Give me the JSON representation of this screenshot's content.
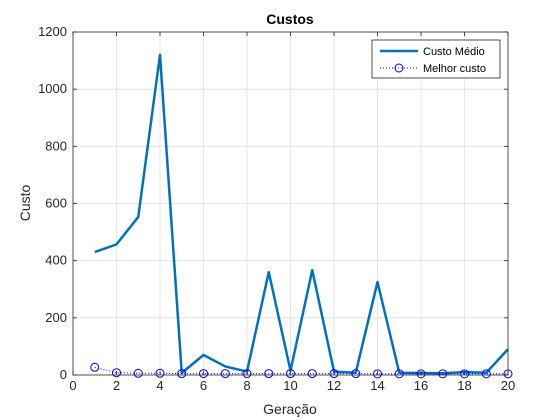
{
  "chart_data": {
    "type": "line",
    "title": "Custos",
    "xlabel": "Geração",
    "ylabel": "Custo",
    "xlim": [
      0,
      20
    ],
    "ylim": [
      0,
      1200
    ],
    "xticks": [
      0,
      2,
      4,
      6,
      8,
      10,
      12,
      14,
      16,
      18,
      20
    ],
    "yticks": [
      0,
      200,
      400,
      600,
      800,
      1000,
      1200
    ],
    "grid": true,
    "legend_position": "top-right",
    "x": [
      1,
      2,
      3,
      4,
      5,
      6,
      7,
      8,
      9,
      10,
      11,
      12,
      13,
      14,
      15,
      16,
      17,
      18,
      19,
      20
    ],
    "series": [
      {
        "name": "Custo Médio",
        "style": "solid line",
        "color": "#0072BD",
        "values": [
          430,
          457,
          553,
          1120,
          7,
          70,
          30,
          12,
          360,
          15,
          367,
          12,
          8,
          325,
          8,
          7,
          6,
          10,
          8,
          90
        ]
      },
      {
        "name": "Melhor custo",
        "style": "dotted line with circle markers",
        "color": "#0000FF",
        "values": [
          27,
          8,
          6,
          6,
          5,
          5,
          5,
          5,
          5,
          5,
          5,
          5,
          5,
          4,
          4,
          4,
          4,
          4,
          4,
          4
        ]
      }
    ]
  }
}
